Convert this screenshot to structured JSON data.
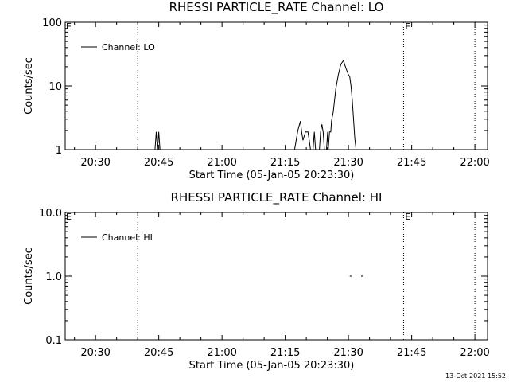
{
  "footer": {
    "timestamp": "13-Oct-2021 15:52"
  },
  "chart_data": [
    {
      "type": "line",
      "title": "RHESSI PARTICLE_RATE Channel: LO",
      "xlabel": "Start Time (05-Jan-05 20:23:30)",
      "ylabel": "Counts/sec",
      "x_unit": "minutes",
      "xlim": [
        20.38,
        22.05
      ],
      "xticks": [
        {
          "label": "20:30",
          "value": 20.5
        },
        {
          "label": "20:45",
          "value": 20.75
        },
        {
          "label": "21:00",
          "value": 21.0
        },
        {
          "label": "21:15",
          "value": 21.25
        },
        {
          "label": "21:30",
          "value": 21.5
        },
        {
          "label": "21:45",
          "value": 21.75
        },
        {
          "label": "22:00",
          "value": 22.0
        }
      ],
      "yscale": "log",
      "ylim": [
        1,
        100
      ],
      "yticks": [
        {
          "label": "1",
          "value": 1
        },
        {
          "label": "10",
          "value": 10
        },
        {
          "label": "100",
          "value": 100
        }
      ],
      "legend": {
        "position": "top-left",
        "entries": [
          "Channel: LO"
        ]
      },
      "markers": [
        {
          "value": 20.667,
          "label": ""
        },
        {
          "value": 21.718,
          "label": "E"
        },
        {
          "value": 22.0,
          "label": ""
        }
      ],
      "corner_label": "E",
      "segments": [
        [
          [
            20.735,
            1
          ],
          [
            20.74,
            1.9
          ],
          [
            20.745,
            1
          ]
        ],
        [
          [
            20.745,
            1
          ],
          [
            20.75,
            1.9
          ],
          [
            20.755,
            1
          ]
        ],
        [
          [
            21.287,
            1
          ],
          [
            21.3,
            2.0
          ],
          [
            21.31,
            2.8
          ],
          [
            21.315,
            1.9
          ],
          [
            21.32,
            1.4
          ],
          [
            21.33,
            1.9
          ],
          [
            21.34,
            1.9
          ],
          [
            21.345,
            1.4
          ],
          [
            21.35,
            1
          ]
        ],
        [
          [
            21.36,
            1
          ],
          [
            21.365,
            1.9
          ],
          [
            21.37,
            1
          ]
        ],
        [
          [
            21.385,
            1
          ],
          [
            21.39,
            1.9
          ],
          [
            21.395,
            2.5
          ],
          [
            21.4,
            1.9
          ],
          [
            21.405,
            1
          ]
        ],
        [
          [
            21.413,
            1
          ],
          [
            21.418,
            1.9
          ],
          [
            21.42,
            1
          ],
          [
            21.425,
            1.9
          ],
          [
            21.43,
            1.9
          ],
          [
            21.433,
            2.8
          ],
          [
            21.44,
            3.9
          ],
          [
            21.45,
            9
          ],
          [
            21.46,
            15
          ],
          [
            21.47,
            22
          ],
          [
            21.48,
            25
          ],
          [
            21.49,
            19
          ],
          [
            21.5,
            15
          ],
          [
            21.505,
            14
          ],
          [
            21.51,
            10
          ],
          [
            21.515,
            6
          ],
          [
            21.52,
            3
          ],
          [
            21.525,
            1.5
          ],
          [
            21.53,
            1
          ]
        ]
      ]
    },
    {
      "type": "line",
      "title": "RHESSI PARTICLE_RATE Channel: HI",
      "xlabel": "Start Time (05-Jan-05 20:23:30)",
      "ylabel": "Counts/sec",
      "x_unit": "minutes",
      "xlim": [
        20.38,
        22.05
      ],
      "xticks": [
        {
          "label": "20:30",
          "value": 20.5
        },
        {
          "label": "20:45",
          "value": 20.75
        },
        {
          "label": "21:00",
          "value": 21.0
        },
        {
          "label": "21:15",
          "value": 21.25
        },
        {
          "label": "21:30",
          "value": 21.5
        },
        {
          "label": "21:45",
          "value": 21.75
        },
        {
          "label": "22:00",
          "value": 22.0
        }
      ],
      "yscale": "log",
      "ylim": [
        0.1,
        10
      ],
      "yticks": [
        {
          "label": "0.1",
          "value": 0.1
        },
        {
          "label": "1.0",
          "value": 1.0
        },
        {
          "label": "10.0",
          "value": 10.0
        }
      ],
      "legend": {
        "position": "top-left",
        "entries": [
          "Channel: HI"
        ]
      },
      "markers": [
        {
          "value": 20.667,
          "label": ""
        },
        {
          "value": 21.718,
          "label": "E"
        },
        {
          "value": 22.0,
          "label": ""
        }
      ],
      "corner_label": "E",
      "segments": [
        [
          [
            21.505,
            1.0
          ],
          [
            21.513,
            1.0
          ]
        ],
        [
          [
            21.55,
            1.0
          ],
          [
            21.558,
            1.0
          ]
        ]
      ]
    }
  ]
}
